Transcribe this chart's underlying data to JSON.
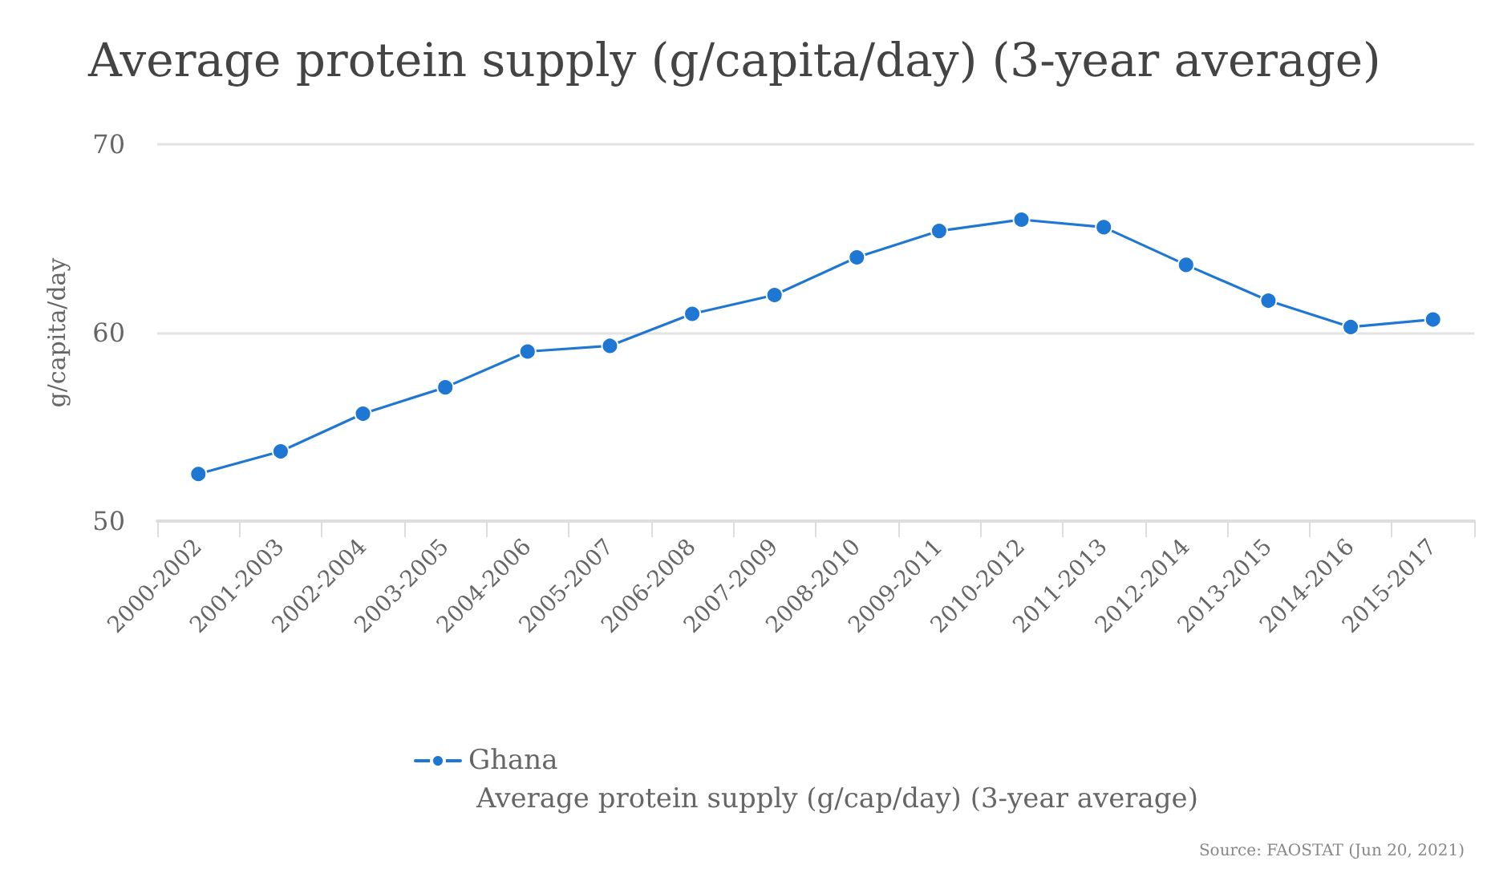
{
  "chart_data": {
    "type": "line",
    "title": "Average protein supply (g/capita/day) (3-year average)",
    "ylabel": "g/capita/day",
    "categories": [
      "2000-2002",
      "2001-2003",
      "2002-2004",
      "2003-2005",
      "2004-2006",
      "2005-2007",
      "2006-2008",
      "2007-2009",
      "2008-2010",
      "2009-2011",
      "2010-2012",
      "2011-2013",
      "2012-2014",
      "2013-2015",
      "2014-2016",
      "2015-2017"
    ],
    "series": [
      {
        "name": "Ghana",
        "color": "#1f77d4",
        "values": [
          52.5,
          53.7,
          55.7,
          57.1,
          59.0,
          59.3,
          61.0,
          62.0,
          64.0,
          65.4,
          66.0,
          65.6,
          63.6,
          61.7,
          60.3,
          60.7
        ]
      }
    ],
    "ylim": [
      50,
      70
    ],
    "yticks": [
      50,
      60,
      70
    ],
    "grid": "y",
    "legend": "bottom",
    "marker": "circle",
    "line_style": "solid",
    "annotations": [
      "Average protein supply (g/cap/day) (3-year average)",
      "Source: FAOSTAT (Jun 20, 2021)"
    ]
  }
}
